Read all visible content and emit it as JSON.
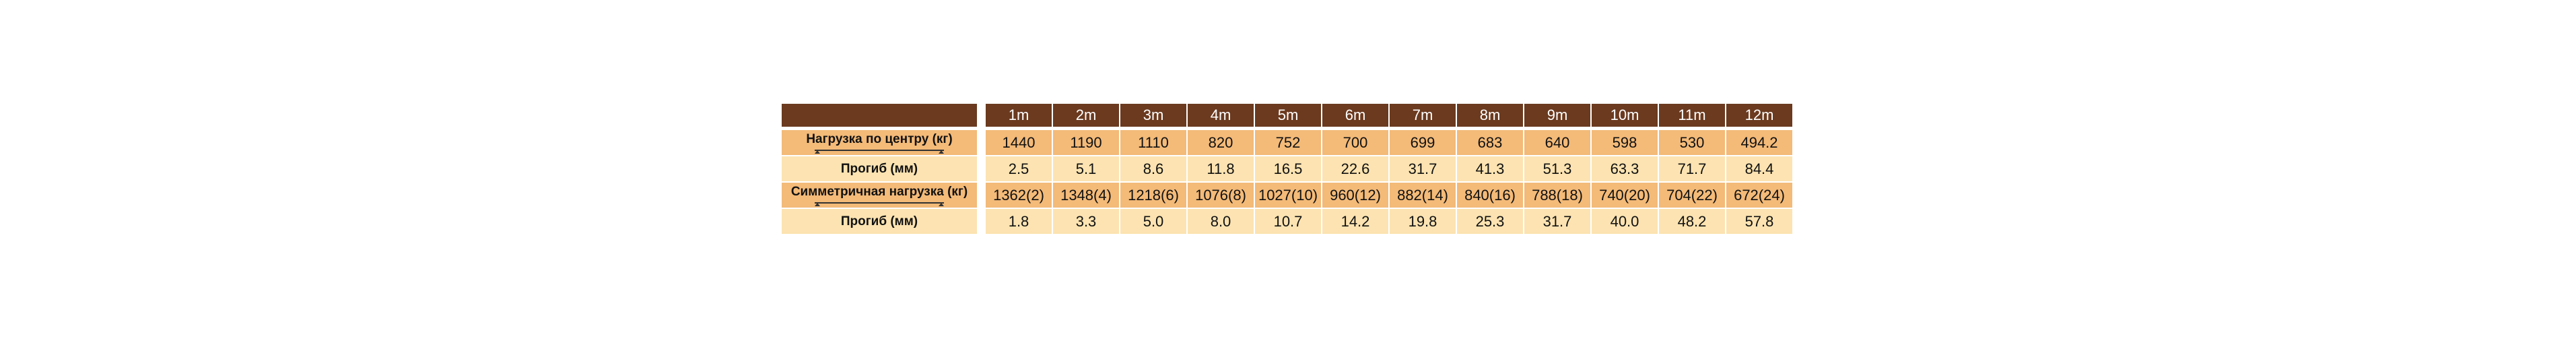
{
  "table": {
    "header": [
      "1m",
      "2m",
      "3m",
      "4m",
      "5m",
      "6m",
      "7m",
      "8m",
      "9m",
      "10m",
      "11m",
      "12m"
    ],
    "rows": [
      {
        "label": "Нагрузка по центру (кг)",
        "values": [
          "1440",
          "1190",
          "1110",
          "820",
          "752",
          "700",
          "699",
          "683",
          "640",
          "598",
          "530",
          "494.2"
        ]
      },
      {
        "label": "Прогиб (мм)",
        "values": [
          "2.5",
          "5.1",
          "8.6",
          "11.8",
          "16.5",
          "22.6",
          "31.7",
          "41.3",
          "51.3",
          "63.3",
          "71.7",
          "84.4"
        ]
      },
      {
        "label": "Симметричная нагрузка (кг)",
        "values": [
          "1362(2)",
          "1348(4)",
          "1218(6)",
          "1076(8)",
          "1027(10)",
          "960(12)",
          "882(14)",
          "840(16)",
          "788(18)",
          "740(20)",
          "704(22)",
          "672(24)"
        ]
      },
      {
        "label": "Прогиб (мм)",
        "values": [
          "1.8",
          "3.3",
          "5.0",
          "8.0",
          "10.7",
          "14.2",
          "19.8",
          "25.3",
          "31.7",
          "40.0",
          "48.2",
          "57.8"
        ]
      }
    ]
  }
}
